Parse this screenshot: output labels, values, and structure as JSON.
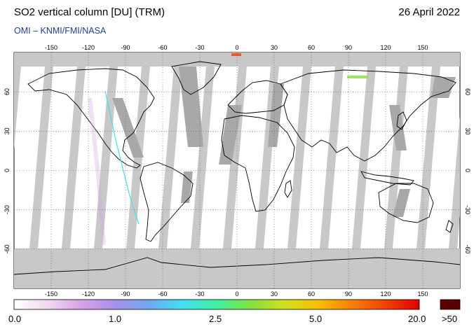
{
  "header": {
    "title": "SO2 vertical column [DU] (TRM)",
    "date": "26 April 2022",
    "credit": "OMI  –  KNMI/FMI/NASA"
  },
  "axes": {
    "lon_ticks": [
      -150,
      -120,
      -90,
      -60,
      -30,
      0,
      30,
      60,
      90,
      120,
      150
    ],
    "lat_ticks": [
      60,
      30,
      0,
      -30,
      -60
    ],
    "lon_range": [
      -180,
      180
    ],
    "lat_range": [
      -90,
      90
    ]
  },
  "colorbar": {
    "labels": [
      "0.0",
      "1.0",
      "2.5",
      "5.0",
      "20.0"
    ],
    "overflow_label": ">50",
    "colors": [
      "#ffffff",
      "#f0d8f0",
      "#d8a0e8",
      "#a890e8",
      "#70a8f0",
      "#40e0f0",
      "#40f0a0",
      "#80e040",
      "#d0e020",
      "#f8c000",
      "#f88000",
      "#f04000",
      "#e00000"
    ],
    "overflow_color": "#5a0000"
  },
  "map": {
    "ocean_color": "#ffffff",
    "land_color": "#ffffff",
    "no_data_color": "#c8c8c8",
    "swath_gap_color": "#a8a8a8"
  }
}
